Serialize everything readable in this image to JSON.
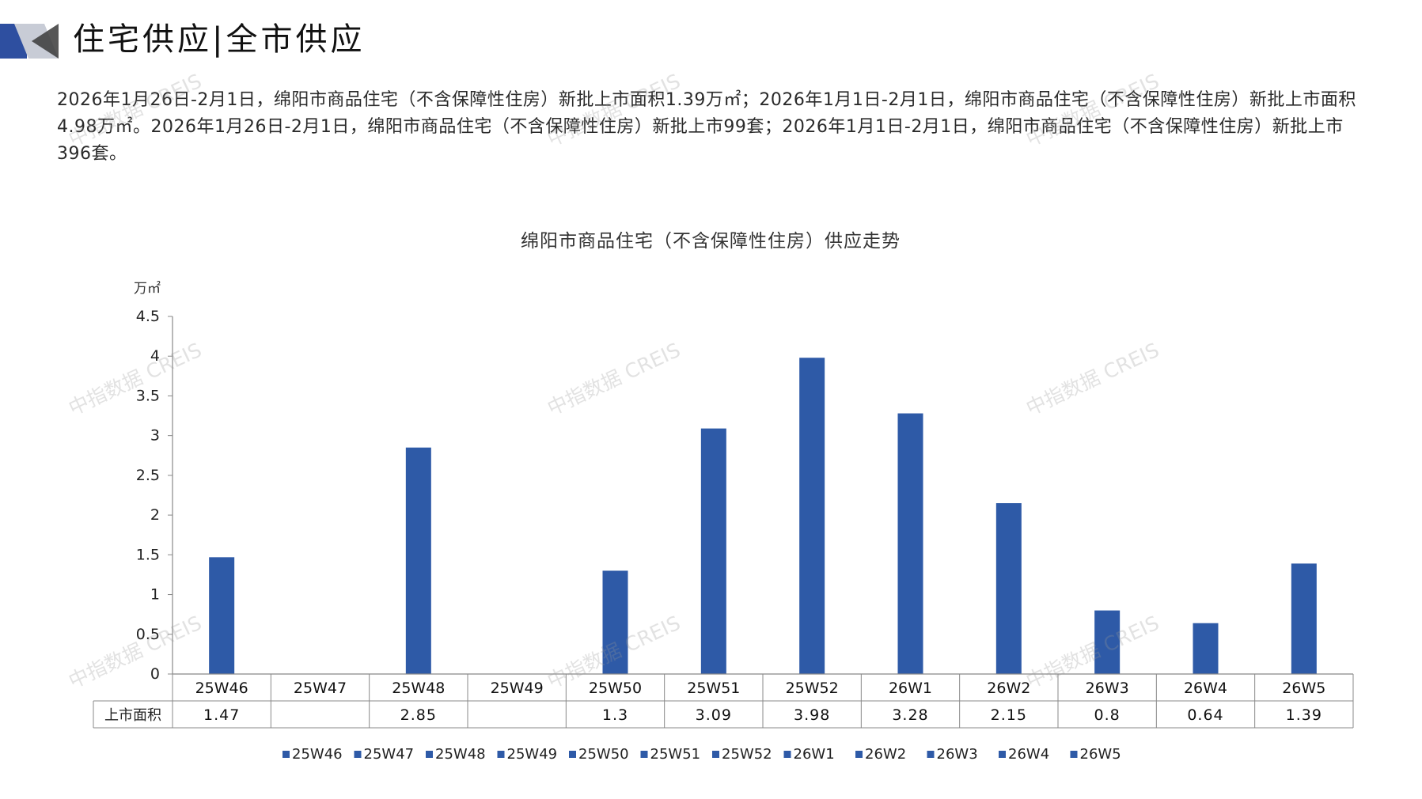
{
  "header": {
    "title": "住宅供应|全市供应"
  },
  "intro": {
    "text": "2026年1月26日-2月1日，绵阳市商品住宅（不含保障性住房）新批上市面积1.39万㎡；2026年1月1日-2月1日，绵阳市商品住宅（不含保障性住房）新批上市面积4.98万㎡。2026年1月26日-2月1日，绵阳市商品住宅（不含保障性住房）新批上市99套；2026年1月1日-2月1日，绵阳市商品住宅（不含保障性住房）新批上市396套。"
  },
  "watermark": {
    "text": "中指数据 CREIS"
  },
  "colors": {
    "bar": "#2E5AA7",
    "axis": "#888888",
    "logo_dark": "#2E4FA0",
    "logo_light": "#C8CCD6"
  },
  "chart_data": {
    "type": "bar",
    "title": "绵阳市商品住宅（不含保障性住房）供应走势",
    "ylabel": "万㎡",
    "ylim": [
      0,
      4.5
    ],
    "yticks": [
      "0",
      "0.5",
      "1",
      "1.5",
      "2",
      "2.5",
      "3",
      "3.5",
      "4",
      "4.5"
    ],
    "grid": false,
    "legend": "bottom",
    "categories": [
      "25W46",
      "25W47",
      "25W48",
      "25W49",
      "25W50",
      "25W51",
      "25W52",
      "26W1",
      "26W2",
      "26W3",
      "26W4",
      "26W5"
    ],
    "series": [
      {
        "name": "上市面积",
        "values": [
          1.47,
          null,
          2.85,
          null,
          1.3,
          3.09,
          3.98,
          3.28,
          2.15,
          0.8,
          0.64,
          1.39
        ],
        "labels": [
          "1.47",
          "",
          "2.85",
          "",
          "1.3",
          "3.09",
          "3.98",
          "3.28",
          "2.15",
          "0.8",
          "0.64",
          "1.39"
        ]
      }
    ],
    "legend_entries": [
      "25W46",
      "25W47",
      "25W48",
      "25W49",
      "25W50",
      "25W51",
      "25W52",
      "26W1",
      "26W2",
      "26W3",
      "26W4",
      "26W5"
    ]
  }
}
